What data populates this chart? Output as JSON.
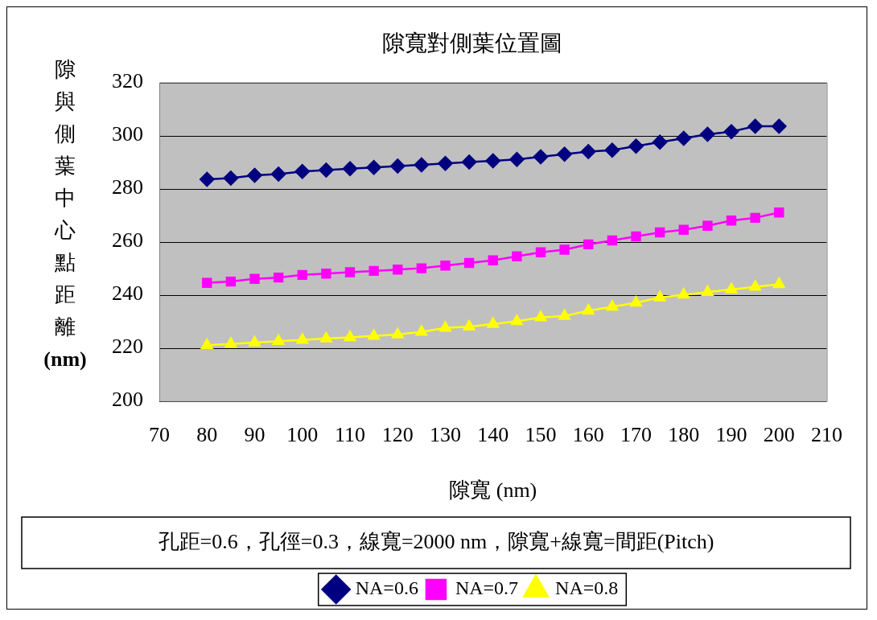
{
  "chart_data": {
    "type": "line",
    "title": "隙寬對側葉位置圖",
    "xlabel": "隙寬 (nm)",
    "ylabel": "隙與側葉中心點距離(nm)",
    "annotations": [
      "孔距=0.6，孔徑=0.3，線寬=2000 nm，隙寬+線寬=間距(Pitch)"
    ],
    "x": [
      80,
      85,
      90,
      95,
      100,
      105,
      110,
      115,
      120,
      125,
      130,
      135,
      140,
      145,
      150,
      155,
      160,
      165,
      170,
      175,
      180,
      185,
      190,
      195,
      200
    ],
    "xlim": [
      70,
      210
    ],
    "xticks": [
      70,
      80,
      90,
      100,
      110,
      120,
      130,
      140,
      150,
      160,
      170,
      180,
      190,
      200,
      210
    ],
    "ylim": [
      200,
      320
    ],
    "yticks": [
      200,
      220,
      240,
      260,
      280,
      300,
      320
    ],
    "grid": "y",
    "legend": "bottom",
    "line_style": "solid",
    "series": [
      {
        "name": "NA=0.6",
        "color": "#000080",
        "marker": "diamond",
        "values": [
          283.5,
          284,
          285,
          285.5,
          286.5,
          287,
          287.5,
          288,
          288.5,
          289,
          289.5,
          290,
          290.5,
          291,
          292,
          293,
          294,
          294.5,
          296,
          297.5,
          299,
          300.5,
          301.5,
          303.5,
          303.5
        ]
      },
      {
        "name": "NA=0.7",
        "color": "#ff00ff",
        "marker": "square",
        "values": [
          244.5,
          245,
          246,
          246.5,
          247.5,
          248,
          248.5,
          249,
          249.5,
          250,
          251,
          252,
          253,
          254.5,
          256,
          257,
          259,
          260.5,
          262,
          263.5,
          264.5,
          266,
          268,
          269,
          271
        ]
      },
      {
        "name": "NA=0.8",
        "color": "#ffff00",
        "marker": "triangle",
        "values": [
          221,
          221.5,
          222,
          222.5,
          223,
          223.5,
          224,
          224.5,
          225,
          226,
          227.5,
          228,
          229,
          230,
          231.5,
          232,
          234,
          235.5,
          237,
          239,
          240,
          241,
          242,
          243,
          244
        ]
      }
    ]
  }
}
